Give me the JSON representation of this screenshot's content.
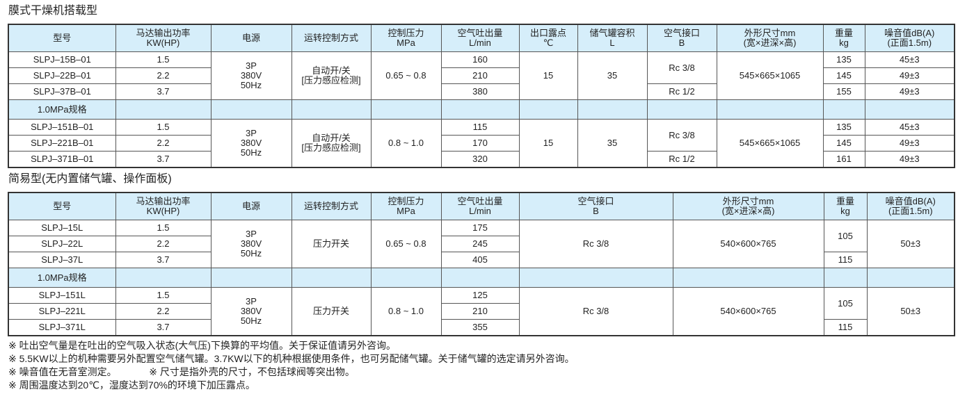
{
  "table1": {
    "title": "膜式干燥机搭载型",
    "headers": [
      [
        "型号",
        ""
      ],
      [
        "马达输出功率",
        "KW(HP)"
      ],
      [
        "电源",
        ""
      ],
      [
        "运转控制方式",
        ""
      ],
      [
        "控制压力",
        "MPa"
      ],
      [
        "空气吐出量",
        "L/min"
      ],
      [
        "出口露点",
        "℃"
      ],
      [
        "储气罐容积",
        "L"
      ],
      [
        "空气接口",
        "B"
      ],
      [
        "外形尺寸mm",
        "(宽×进深×高)"
      ],
      [
        "重量",
        "kg"
      ],
      [
        "噪音值dB(A)",
        "(正面1.5m)"
      ]
    ],
    "band_label": "1.0MPa规格",
    "groups": [
      {
        "supply": [
          "3P",
          "380V",
          "50Hz"
        ],
        "control": [
          "自动开/关",
          "[压力感应检测]"
        ],
        "pressure": "0.65 ~ 0.8",
        "dew": "15",
        "tank": "35",
        "port_a": "Rc 3/8",
        "port_b": "Rc 1/2",
        "dims": "545×665×1065",
        "rows": [
          {
            "model": "SLPJ–15B–01",
            "power": "1.5",
            "air": "160",
            "weight": "135",
            "noise": "45±3"
          },
          {
            "model": "SLPJ–22B–01",
            "power": "2.2",
            "air": "210",
            "weight": "145",
            "noise": "49±3"
          },
          {
            "model": "SLPJ–37B–01",
            "power": "3.7",
            "air": "380",
            "weight": "155",
            "noise": "49±3"
          }
        ]
      },
      {
        "supply": [
          "3P",
          "380V",
          "50Hz"
        ],
        "control": [
          "自动开/关",
          "[压力感应检测]"
        ],
        "pressure": "0.8 ~ 1.0",
        "dew": "15",
        "tank": "35",
        "port_a": "Rc 3/8",
        "port_b": "Rc 1/2",
        "dims": "545×665×1065",
        "rows": [
          {
            "model": "SLPJ–151B–01",
            "power": "1.5",
            "air": "115",
            "weight": "135",
            "noise": "45±3"
          },
          {
            "model": "SLPJ–221B–01",
            "power": "2.2",
            "air": "170",
            "weight": "145",
            "noise": "49±3"
          },
          {
            "model": "SLPJ–371B–01",
            "power": "3.7",
            "air": "320",
            "weight": "161",
            "noise": "49±3"
          }
        ]
      }
    ]
  },
  "table2": {
    "title": "简易型(无内置储气罐、操作面板)",
    "headers": [
      [
        "型号",
        ""
      ],
      [
        "马达输出功率",
        "KW(HP)"
      ],
      [
        "电源",
        ""
      ],
      [
        "运转控制方式",
        ""
      ],
      [
        "控制压力",
        "MPa"
      ],
      [
        "空气吐出量",
        "L/min"
      ],
      [
        "空气接口",
        "B"
      ],
      [
        "外形尺寸mm",
        "(宽×进深×高)"
      ],
      [
        "重量",
        "kg"
      ],
      [
        "噪音值dB(A)",
        "(正面1.5m)"
      ]
    ],
    "band_label": "1.0MPa规格",
    "groups": [
      {
        "supply": [
          "3P",
          "380V",
          "50Hz"
        ],
        "control": "压力开关",
        "pressure": "0.65 ~ 0.8",
        "port": "Rc 3/8",
        "dims": "540×600×765",
        "weight_a": "105",
        "weight_b": "115",
        "noise": "50±3",
        "rows": [
          {
            "model": "SLPJ–15L",
            "power": "1.5",
            "air": "175"
          },
          {
            "model": "SLPJ–22L",
            "power": "2.2",
            "air": "245"
          },
          {
            "model": "SLPJ–37L",
            "power": "3.7",
            "air": "405"
          }
        ]
      },
      {
        "supply": [
          "3P",
          "380V",
          "50Hz"
        ],
        "control": "压力开关",
        "pressure": "0.8 ~ 1.0",
        "port": "Rc 3/8",
        "dims": "540×600×765",
        "weight_a": "105",
        "weight_b": "115",
        "noise": "50±3",
        "rows": [
          {
            "model": "SLPJ–151L",
            "power": "1.5",
            "air": "125"
          },
          {
            "model": "SLPJ–221L",
            "power": "2.2",
            "air": "210"
          },
          {
            "model": "SLPJ–371L",
            "power": "3.7",
            "air": "355"
          }
        ]
      }
    ]
  },
  "notes": [
    "※ 吐出空气量是在吐出的空气吸入状态(大气压)下换算的平均值。关于保证值请另外咨询。",
    "※ 5.5KW以上的机种需要另外配置空气储气罐。3.7KW以下的机种根据使用条件，也可另配储气罐。关于储气罐的选定请另外咨询。",
    "※ 噪音值在无音室测定。            ※ 尺寸是指外壳的尺寸，不包括球阀等突出物。",
    "※ 周围温度达到20℃，湿度达到70%的环境下加压露点。"
  ],
  "colors": {
    "header_bg": "#d6eefa",
    "border": "#333333"
  }
}
